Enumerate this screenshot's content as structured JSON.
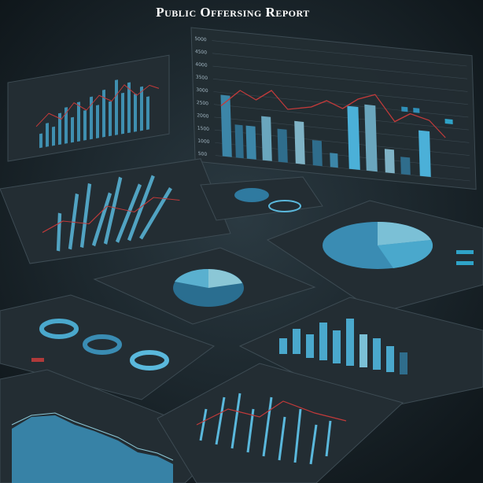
{
  "header": {
    "title": "Public Offersing Report"
  },
  "main_panel": {
    "yticks": [
      "5000",
      "4500",
      "4000",
      "3500",
      "3000",
      "2500",
      "2000",
      "1500",
      "1000",
      "500"
    ]
  }
}
